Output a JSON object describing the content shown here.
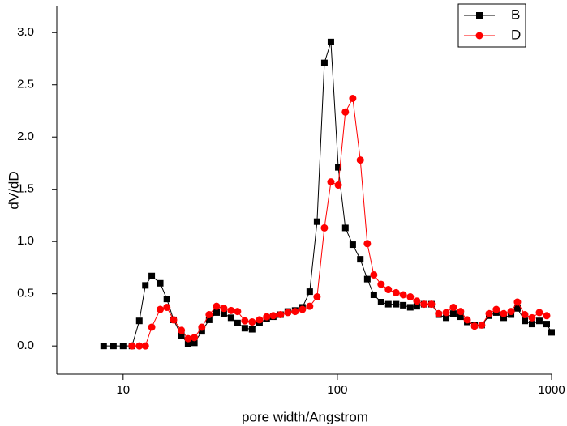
{
  "chart_data": {
    "type": "line",
    "xlabel": "pore width/Angstrom",
    "ylabel": "dV/dD",
    "x": [
      8.11,
      9.01,
      10,
      11.0,
      11.9,
      12.7,
      13.6,
      14.9,
      16.0,
      17.2,
      18.7,
      20.1,
      21.5,
      23.3,
      25.2,
      27.3,
      29.5,
      31.9,
      34.2,
      37.0,
      40.0,
      43.3,
      46.8,
      50.2,
      54.3,
      58.7,
      63.5,
      68.7,
      74.3,
      80.4,
      87.0,
      93.3,
      101,
      109,
      118,
      128,
      138,
      148,
      160,
      173,
      188,
      203,
      219,
      235,
      254,
      275,
      297,
      322,
      348,
      376,
      404,
      437,
      472,
      511,
      552,
      598,
      647,
      693,
      750,
      811,
      877,
      949,
      1000
    ],
    "series": [
      {
        "name": "B",
        "color": "#000000",
        "marker": "square",
        "values": [
          0,
          0,
          0,
          0,
          0.24,
          0.58,
          0.67,
          0.6,
          0.45,
          0.25,
          0.1,
          0.02,
          0.03,
          0.14,
          0.25,
          0.32,
          0.31,
          0.27,
          0.22,
          0.17,
          0.16,
          0.22,
          0.26,
          0.28,
          0.3,
          0.33,
          0.34,
          0.37,
          0.52,
          1.19,
          2.71,
          2.91,
          1.71,
          1.13,
          0.97,
          0.83,
          0.64,
          0.49,
          0.42,
          0.4,
          0.4,
          0.39,
          0.37,
          0.38,
          0.4,
          0.4,
          0.3,
          0.27,
          0.31,
          0.28,
          0.23,
          0.2,
          0.2,
          0.29,
          0.32,
          0.27,
          0.3,
          0.36,
          0.24,
          0.21,
          0.24,
          0.21,
          0.13
        ]
      },
      {
        "name": "D",
        "color": "#ff0000",
        "marker": "circle",
        "values": [
          null,
          null,
          null,
          0,
          0,
          0,
          0.18,
          0.35,
          0.37,
          0.25,
          0.15,
          0.07,
          0.08,
          0.18,
          0.3,
          0.38,
          0.36,
          0.34,
          0.33,
          0.24,
          0.23,
          0.25,
          0.28,
          0.29,
          0.3,
          0.32,
          0.33,
          0.35,
          0.38,
          0.47,
          1.13,
          1.57,
          1.54,
          2.24,
          2.37,
          1.78,
          0.98,
          0.68,
          0.59,
          0.54,
          0.51,
          0.49,
          0.47,
          0.43,
          0.4,
          0.4,
          0.31,
          0.32,
          0.37,
          0.33,
          0.25,
          0.19,
          0.2,
          0.31,
          0.35,
          0.31,
          0.33,
          0.42,
          0.3,
          0.27,
          0.32,
          0.29,
          null
        ]
      }
    ],
    "xscale": "log",
    "xlim": [
      4.9,
      1000
    ],
    "xticks": [
      10,
      100,
      1000
    ],
    "ylim": [
      -0.27,
      3.25
    ],
    "yticks": [
      {
        "value": 0,
        "label": "0.0"
      },
      {
        "value": 0.5,
        "label": "0.5"
      },
      {
        "value": 1,
        "label": "1.0"
      },
      {
        "value": 1.5,
        "label": "1.5"
      },
      {
        "value": 2,
        "label": "2.0"
      },
      {
        "value": 2.5,
        "label": "2.5"
      },
      {
        "value": 3,
        "label": "3.0"
      }
    ],
    "legend": "upper right"
  }
}
